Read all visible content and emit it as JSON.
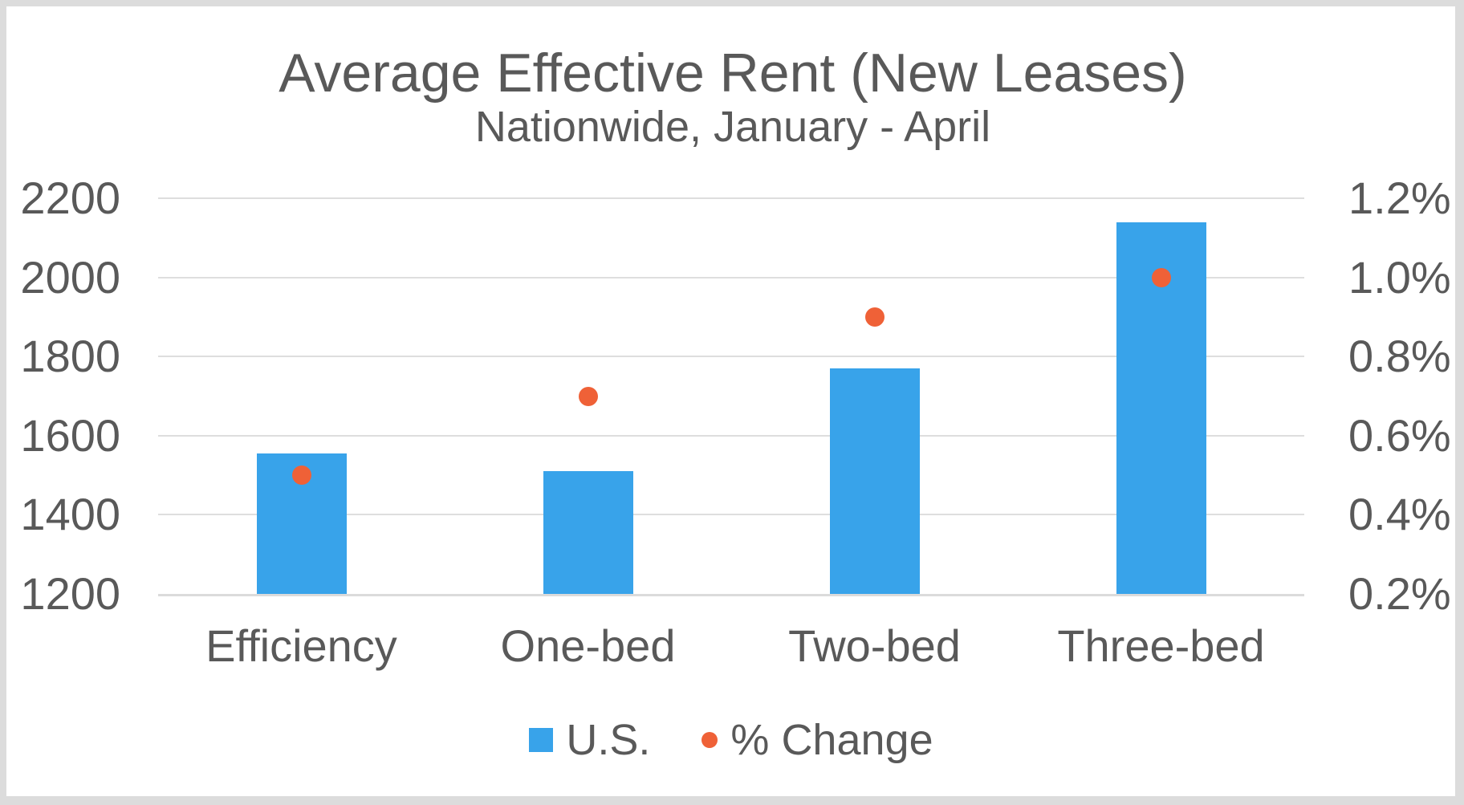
{
  "chart_data": {
    "type": "bar",
    "title": "Average Effective Rent (New Leases)",
    "subtitle": "Nationwide, January - April",
    "categories": [
      "Efficiency",
      "One-bed",
      "Two-bed",
      "Three-bed"
    ],
    "series": [
      {
        "name": "U.S.",
        "type": "bar",
        "axis": "left",
        "values": [
          1555,
          1510,
          1770,
          2140
        ],
        "color": "#38a3ea"
      },
      {
        "name": "% Change",
        "type": "scatter",
        "axis": "right",
        "values": [
          0.5,
          0.7,
          0.9,
          1.0
        ],
        "unit": "%",
        "color": "#ef6137"
      }
    ],
    "left_axis": {
      "min": 1200,
      "max": 2200,
      "step": 200,
      "ticks": [
        "2200",
        "2000",
        "1800",
        "1600",
        "1400",
        "1200"
      ]
    },
    "right_axis": {
      "min": 0.2,
      "max": 1.2,
      "step": 0.2,
      "ticks": [
        "1.2%",
        "1.0%",
        "0.8%",
        "0.6%",
        "0.4%",
        "0.2%"
      ]
    },
    "grid": true,
    "legend_position": "bottom",
    "colors": {
      "text": "#595959",
      "gridline": "#dedede",
      "background": "#ffffff",
      "frame": "#dcdcdc"
    }
  }
}
